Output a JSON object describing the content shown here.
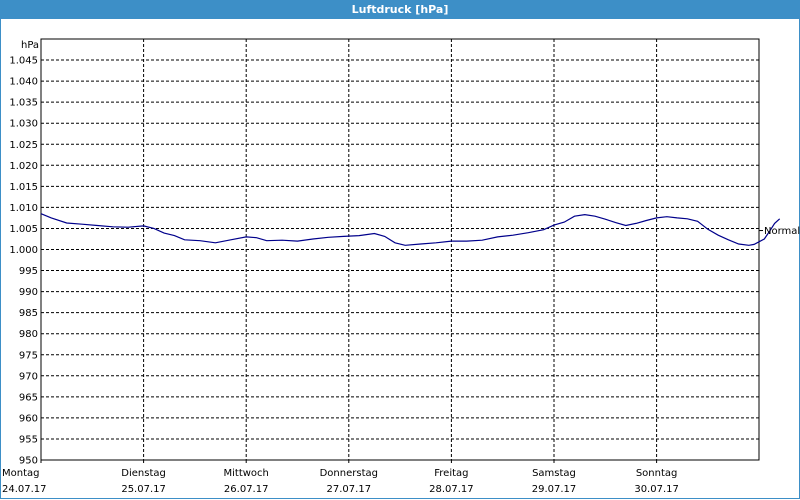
{
  "window": {
    "title": "Luftdruck [hPa]"
  },
  "chart_data": {
    "type": "line",
    "title": "Luftdruck [hPa]",
    "ylabel": "hPa",
    "ylim": [
      950,
      1050
    ],
    "yticks": [
      "1.045",
      "1.040",
      "1.035",
      "1.030",
      "1.025",
      "1.020",
      "1.015",
      "1.010",
      "1.005",
      "1.000",
      "995",
      "990",
      "985",
      "980",
      "975",
      "970",
      "965",
      "960",
      "955",
      "950"
    ],
    "ytick_values": [
      1045,
      1040,
      1035,
      1030,
      1025,
      1020,
      1015,
      1010,
      1005,
      1000,
      995,
      990,
      985,
      980,
      975,
      970,
      965,
      960,
      955,
      950
    ],
    "x_days": [
      {
        "day": "Montag",
        "date": "24.07.17"
      },
      {
        "day": "Dienstag",
        "date": "25.07.17"
      },
      {
        "day": "Mittwoch",
        "date": "26.07.17"
      },
      {
        "day": "Donnerstag",
        "date": "27.07.17"
      },
      {
        "day": "Freitag",
        "date": "28.07.17"
      },
      {
        "day": "Samstag",
        "date": "29.07.17"
      },
      {
        "day": "Sonntag",
        "date": "30.07.17"
      }
    ],
    "xlim_days": [
      0,
      7.2
    ],
    "series": [
      {
        "color": "#00008b",
        "points": [
          [
            0.0,
            1008.5
          ],
          [
            0.1,
            1007.5
          ],
          [
            0.25,
            1006.3
          ],
          [
            0.4,
            1006.0
          ],
          [
            0.55,
            1005.7
          ],
          [
            0.7,
            1005.4
          ],
          [
            0.85,
            1005.3
          ],
          [
            1.0,
            1005.6
          ],
          [
            1.1,
            1005.0
          ],
          [
            1.2,
            1003.9
          ],
          [
            1.3,
            1003.3
          ],
          [
            1.4,
            1002.3
          ],
          [
            1.55,
            1002.1
          ],
          [
            1.7,
            1001.6
          ],
          [
            1.85,
            1002.3
          ],
          [
            2.0,
            1003.0
          ],
          [
            2.1,
            1002.8
          ],
          [
            2.2,
            1002.1
          ],
          [
            2.35,
            1002.2
          ],
          [
            2.5,
            1002.0
          ],
          [
            2.65,
            1002.5
          ],
          [
            2.8,
            1002.9
          ],
          [
            2.95,
            1003.1
          ],
          [
            3.1,
            1003.3
          ],
          [
            3.25,
            1003.8
          ],
          [
            3.35,
            1003.1
          ],
          [
            3.45,
            1001.6
          ],
          [
            3.55,
            1001.0
          ],
          [
            3.7,
            1001.3
          ],
          [
            3.85,
            1001.6
          ],
          [
            4.0,
            1002.0
          ],
          [
            4.15,
            1002.0
          ],
          [
            4.3,
            1002.2
          ],
          [
            4.45,
            1003.0
          ],
          [
            4.6,
            1003.4
          ],
          [
            4.75,
            1004.0
          ],
          [
            4.9,
            1004.7
          ],
          [
            5.0,
            1005.8
          ],
          [
            5.1,
            1006.5
          ],
          [
            5.2,
            1007.9
          ],
          [
            5.3,
            1008.3
          ],
          [
            5.4,
            1007.9
          ],
          [
            5.5,
            1007.2
          ],
          [
            5.6,
            1006.4
          ],
          [
            5.7,
            1005.7
          ],
          [
            5.8,
            1006.2
          ],
          [
            5.9,
            1006.9
          ],
          [
            6.0,
            1007.5
          ],
          [
            6.1,
            1007.8
          ],
          [
            6.2,
            1007.5
          ],
          [
            6.3,
            1007.3
          ],
          [
            6.4,
            1006.7
          ],
          [
            6.5,
            1004.8
          ],
          [
            6.6,
            1003.4
          ],
          [
            6.7,
            1002.3
          ],
          [
            6.8,
            1001.3
          ],
          [
            6.9,
            1001.0
          ],
          [
            6.95,
            1001.2
          ],
          [
            7.05,
            1002.5
          ],
          [
            7.1,
            1004.3
          ],
          [
            7.15,
            1006.2
          ],
          [
            7.2,
            1007.3
          ]
        ]
      }
    ],
    "annotations": [
      {
        "text": "Normal",
        "y": 1004.5
      }
    ],
    "grid": true
  }
}
